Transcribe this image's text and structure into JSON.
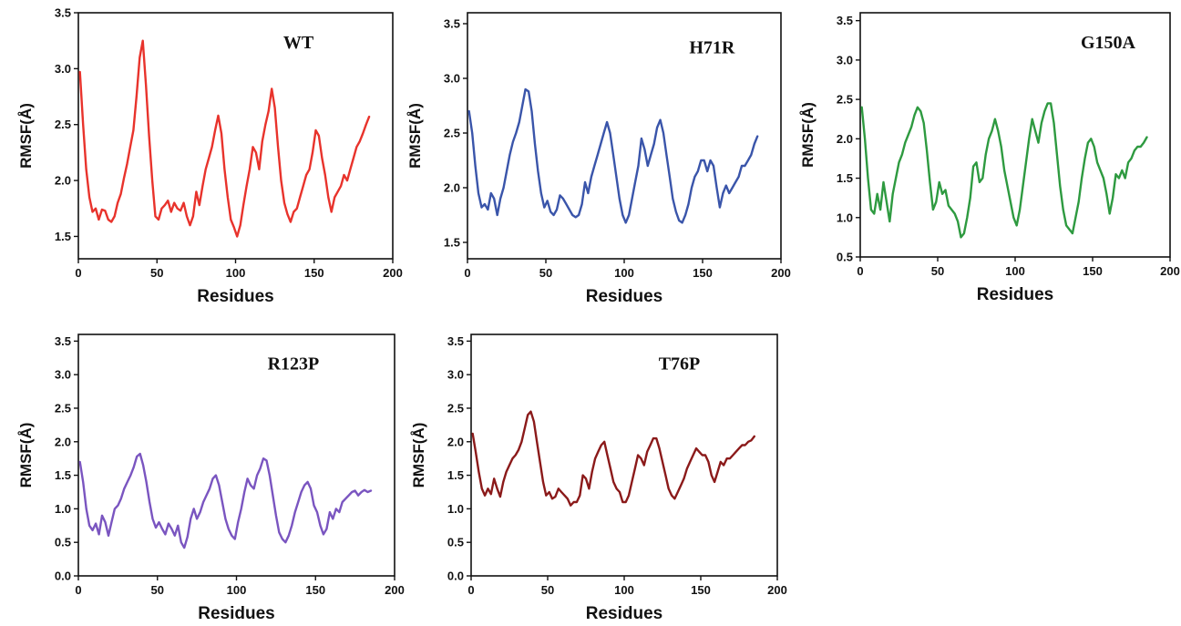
{
  "chart_data": [
    {
      "type": "line",
      "title": "WT",
      "xlabel": "Residues",
      "ylabel": "RMSF(Å)",
      "xlim": [
        0,
        200
      ],
      "ylim": [
        1.3,
        3.5
      ],
      "xticks": [
        0,
        50,
        100,
        150,
        200
      ],
      "yticks": [
        1.5,
        2.0,
        2.5,
        3.0,
        3.5
      ],
      "grid": false,
      "color": "#e8332c",
      "series": [
        {
          "x": [
            1,
            3,
            5,
            7,
            9,
            11,
            13,
            15,
            17,
            19,
            21,
            23,
            25,
            27,
            29,
            31,
            33,
            35,
            37,
            39,
            41,
            43,
            45,
            47,
            49,
            51,
            53,
            55,
            57,
            59,
            61,
            63,
            65,
            67,
            69,
            71,
            73,
            75,
            77,
            79,
            81,
            83,
            85,
            87,
            89,
            91,
            93,
            95,
            97,
            99,
            101,
            103,
            105,
            107,
            109,
            111,
            113,
            115,
            117,
            119,
            121,
            123,
            125,
            127,
            129,
            131,
            133,
            135,
            137,
            139,
            141,
            143,
            145,
            147,
            149,
            151,
            153,
            155,
            157,
            159,
            161,
            163,
            165,
            167,
            169,
            171,
            173,
            175,
            177,
            179,
            181,
            183,
            185
          ],
          "y": [
            2.97,
            2.5,
            2.1,
            1.85,
            1.72,
            1.75,
            1.65,
            1.74,
            1.73,
            1.65,
            1.63,
            1.68,
            1.8,
            1.88,
            2.02,
            2.15,
            2.3,
            2.45,
            2.75,
            3.1,
            3.25,
            2.85,
            2.4,
            2.0,
            1.68,
            1.65,
            1.75,
            1.78,
            1.82,
            1.72,
            1.8,
            1.75,
            1.73,
            1.8,
            1.68,
            1.6,
            1.68,
            1.9,
            1.78,
            1.95,
            2.1,
            2.2,
            2.3,
            2.45,
            2.58,
            2.42,
            2.1,
            1.85,
            1.65,
            1.58,
            1.5,
            1.6,
            1.78,
            1.95,
            2.1,
            2.3,
            2.25,
            2.1,
            2.35,
            2.5,
            2.62,
            2.82,
            2.65,
            2.3,
            2.0,
            1.8,
            1.7,
            1.63,
            1.72,
            1.75,
            1.85,
            1.95,
            2.05,
            2.1,
            2.25,
            2.45,
            2.4,
            2.2,
            2.05,
            1.85,
            1.72,
            1.85,
            1.9,
            1.95,
            2.05,
            2.0,
            2.1,
            2.2,
            2.3,
            2.35,
            2.42,
            2.5,
            2.57
          ]
        }
      ]
    },
    {
      "type": "line",
      "title": "H71R",
      "xlabel": "Residues",
      "ylabel": "RMSF(Å)",
      "xlim": [
        0,
        200
      ],
      "ylim": [
        1.35,
        3.6
      ],
      "xticks": [
        0,
        50,
        100,
        150,
        200
      ],
      "yticks": [
        1.5,
        2.0,
        2.5,
        3.0,
        3.5
      ],
      "grid": false,
      "color": "#3a55aa",
      "series": [
        {
          "x": [
            1,
            3,
            5,
            7,
            9,
            11,
            13,
            15,
            17,
            19,
            21,
            23,
            25,
            27,
            29,
            31,
            33,
            35,
            37,
            39,
            41,
            43,
            45,
            47,
            49,
            51,
            53,
            55,
            57,
            59,
            61,
            63,
            65,
            67,
            69,
            71,
            73,
            75,
            77,
            79,
            81,
            83,
            85,
            87,
            89,
            91,
            93,
            95,
            97,
            99,
            101,
            103,
            105,
            107,
            109,
            111,
            113,
            115,
            117,
            119,
            121,
            123,
            125,
            127,
            129,
            131,
            133,
            135,
            137,
            139,
            141,
            143,
            145,
            147,
            149,
            151,
            153,
            155,
            157,
            159,
            161,
            163,
            165,
            167,
            169,
            171,
            173,
            175,
            177,
            179,
            181,
            183,
            185
          ],
          "y": [
            2.7,
            2.5,
            2.2,
            1.95,
            1.82,
            1.85,
            1.8,
            1.95,
            1.9,
            1.75,
            1.9,
            2.0,
            2.15,
            2.3,
            2.42,
            2.5,
            2.6,
            2.75,
            2.9,
            2.88,
            2.7,
            2.4,
            2.15,
            1.95,
            1.82,
            1.88,
            1.78,
            1.75,
            1.8,
            1.93,
            1.9,
            1.85,
            1.8,
            1.75,
            1.73,
            1.75,
            1.85,
            2.05,
            1.95,
            2.1,
            2.2,
            2.3,
            2.4,
            2.5,
            2.6,
            2.5,
            2.3,
            2.1,
            1.9,
            1.75,
            1.68,
            1.75,
            1.9,
            2.05,
            2.2,
            2.45,
            2.35,
            2.2,
            2.3,
            2.4,
            2.55,
            2.62,
            2.5,
            2.3,
            2.1,
            1.9,
            1.78,
            1.7,
            1.68,
            1.75,
            1.85,
            2.0,
            2.1,
            2.15,
            2.25,
            2.25,
            2.15,
            2.25,
            2.2,
            2.0,
            1.82,
            1.95,
            2.02,
            1.95,
            2.0,
            2.05,
            2.1,
            2.2,
            2.2,
            2.25,
            2.3,
            2.4,
            2.47
          ]
        }
      ]
    },
    {
      "type": "line",
      "title": "G150A",
      "xlabel": "Residues",
      "ylabel": "RMSF(Å)",
      "xlim": [
        0,
        200
      ],
      "ylim": [
        0.5,
        3.6
      ],
      "xticks": [
        0,
        50,
        100,
        150,
        200
      ],
      "yticks": [
        0.5,
        1.0,
        1.5,
        2.0,
        2.5,
        3.0,
        3.5
      ],
      "grid": false,
      "color": "#2e9a40",
      "series": [
        {
          "x": [
            1,
            3,
            5,
            7,
            9,
            11,
            13,
            15,
            17,
            19,
            21,
            23,
            25,
            27,
            29,
            31,
            33,
            35,
            37,
            39,
            41,
            43,
            45,
            47,
            49,
            51,
            53,
            55,
            57,
            59,
            61,
            63,
            65,
            67,
            69,
            71,
            73,
            75,
            77,
            79,
            81,
            83,
            85,
            87,
            89,
            91,
            93,
            95,
            97,
            99,
            101,
            103,
            105,
            107,
            109,
            111,
            113,
            115,
            117,
            119,
            121,
            123,
            125,
            127,
            129,
            131,
            133,
            135,
            137,
            139,
            141,
            143,
            145,
            147,
            149,
            151,
            153,
            155,
            157,
            159,
            161,
            163,
            165,
            167,
            169,
            171,
            173,
            175,
            177,
            179,
            181,
            183,
            185
          ],
          "y": [
            2.4,
            2.0,
            1.5,
            1.1,
            1.05,
            1.3,
            1.1,
            1.45,
            1.2,
            0.95,
            1.3,
            1.5,
            1.7,
            1.8,
            1.95,
            2.05,
            2.15,
            2.3,
            2.4,
            2.35,
            2.2,
            1.85,
            1.45,
            1.1,
            1.2,
            1.45,
            1.3,
            1.35,
            1.15,
            1.1,
            1.05,
            0.95,
            0.75,
            0.8,
            1.0,
            1.25,
            1.65,
            1.7,
            1.45,
            1.5,
            1.8,
            2.0,
            2.1,
            2.25,
            2.1,
            1.9,
            1.6,
            1.4,
            1.2,
            1.0,
            0.9,
            1.1,
            1.4,
            1.7,
            2.0,
            2.25,
            2.1,
            1.95,
            2.2,
            2.35,
            2.45,
            2.45,
            2.2,
            1.8,
            1.4,
            1.1,
            0.9,
            0.85,
            0.8,
            1.0,
            1.2,
            1.5,
            1.75,
            1.95,
            2.0,
            1.9,
            1.7,
            1.6,
            1.5,
            1.3,
            1.05,
            1.25,
            1.55,
            1.5,
            1.6,
            1.5,
            1.7,
            1.75,
            1.85,
            1.9,
            1.9,
            1.95,
            2.02
          ]
        }
      ]
    },
    {
      "type": "line",
      "title": "R123P",
      "xlabel": "Residues",
      "ylabel": "RMSF(Å)",
      "xlim": [
        0,
        200
      ],
      "ylim": [
        0,
        3.6
      ],
      "xticks": [
        0,
        50,
        100,
        150,
        200
      ],
      "yticks": [
        0.0,
        0.5,
        1.0,
        1.5,
        2.0,
        2.5,
        3.0,
        3.5
      ],
      "grid": false,
      "color": "#7a55c0",
      "series": [
        {
          "x": [
            1,
            3,
            5,
            7,
            9,
            11,
            13,
            15,
            17,
            19,
            21,
            23,
            25,
            27,
            29,
            31,
            33,
            35,
            37,
            39,
            41,
            43,
            45,
            47,
            49,
            51,
            53,
            55,
            57,
            59,
            61,
            63,
            65,
            67,
            69,
            71,
            73,
            75,
            77,
            79,
            81,
            83,
            85,
            87,
            89,
            91,
            93,
            95,
            97,
            99,
            101,
            103,
            105,
            107,
            109,
            111,
            113,
            115,
            117,
            119,
            121,
            123,
            125,
            127,
            129,
            131,
            133,
            135,
            137,
            139,
            141,
            143,
            145,
            147,
            149,
            151,
            153,
            155,
            157,
            159,
            161,
            163,
            165,
            167,
            169,
            171,
            173,
            175,
            177,
            179,
            181,
            183,
            185
          ],
          "y": [
            1.7,
            1.4,
            1.0,
            0.75,
            0.68,
            0.78,
            0.62,
            0.9,
            0.8,
            0.6,
            0.8,
            1.0,
            1.05,
            1.15,
            1.3,
            1.4,
            1.5,
            1.62,
            1.78,
            1.82,
            1.65,
            1.4,
            1.1,
            0.85,
            0.72,
            0.8,
            0.7,
            0.62,
            0.78,
            0.7,
            0.6,
            0.75,
            0.5,
            0.42,
            0.58,
            0.85,
            1.0,
            0.85,
            0.95,
            1.1,
            1.2,
            1.3,
            1.45,
            1.5,
            1.35,
            1.1,
            0.85,
            0.7,
            0.6,
            0.55,
            0.8,
            1.0,
            1.25,
            1.45,
            1.35,
            1.3,
            1.5,
            1.6,
            1.75,
            1.72,
            1.5,
            1.2,
            0.9,
            0.65,
            0.55,
            0.5,
            0.6,
            0.75,
            0.95,
            1.1,
            1.25,
            1.35,
            1.4,
            1.3,
            1.05,
            0.95,
            0.75,
            0.62,
            0.7,
            0.95,
            0.85,
            1.0,
            0.95,
            1.1,
            1.15,
            1.2,
            1.25,
            1.27,
            1.2,
            1.25,
            1.28,
            1.25,
            1.27
          ]
        }
      ]
    },
    {
      "type": "line",
      "title": "T76P",
      "xlabel": "Residues",
      "ylabel": "RMSF(Å)",
      "xlim": [
        0,
        200
      ],
      "ylim": [
        0,
        3.6
      ],
      "xticks": [
        0,
        50,
        100,
        150,
        200
      ],
      "yticks": [
        0.0,
        0.5,
        1.0,
        1.5,
        2.0,
        2.5,
        3.0,
        3.5
      ],
      "grid": false,
      "color": "#8b1a1a",
      "series": [
        {
          "x": [
            1,
            3,
            5,
            7,
            9,
            11,
            13,
            15,
            17,
            19,
            21,
            23,
            25,
            27,
            29,
            31,
            33,
            35,
            37,
            39,
            41,
            43,
            45,
            47,
            49,
            51,
            53,
            55,
            57,
            59,
            61,
            63,
            65,
            67,
            69,
            71,
            73,
            75,
            77,
            79,
            81,
            83,
            85,
            87,
            89,
            91,
            93,
            95,
            97,
            99,
            101,
            103,
            105,
            107,
            109,
            111,
            113,
            115,
            117,
            119,
            121,
            123,
            125,
            127,
            129,
            131,
            133,
            135,
            137,
            139,
            141,
            143,
            145,
            147,
            149,
            151,
            153,
            155,
            157,
            159,
            161,
            163,
            165,
            167,
            169,
            171,
            173,
            175,
            177,
            179,
            181,
            183,
            185
          ],
          "y": [
            2.12,
            1.85,
            1.55,
            1.3,
            1.2,
            1.3,
            1.22,
            1.45,
            1.3,
            1.18,
            1.4,
            1.55,
            1.65,
            1.75,
            1.8,
            1.88,
            2.0,
            2.2,
            2.4,
            2.45,
            2.3,
            2.0,
            1.7,
            1.4,
            1.2,
            1.25,
            1.15,
            1.18,
            1.3,
            1.25,
            1.2,
            1.15,
            1.05,
            1.1,
            1.1,
            1.2,
            1.5,
            1.45,
            1.3,
            1.55,
            1.75,
            1.85,
            1.95,
            2.0,
            1.8,
            1.6,
            1.4,
            1.3,
            1.25,
            1.1,
            1.1,
            1.2,
            1.4,
            1.6,
            1.8,
            1.75,
            1.65,
            1.85,
            1.95,
            2.05,
            2.05,
            1.9,
            1.7,
            1.5,
            1.3,
            1.2,
            1.15,
            1.25,
            1.35,
            1.45,
            1.6,
            1.7,
            1.8,
            1.9,
            1.85,
            1.8,
            1.8,
            1.7,
            1.5,
            1.4,
            1.55,
            1.7,
            1.65,
            1.75,
            1.75,
            1.8,
            1.85,
            1.9,
            1.95,
            1.95,
            2.0,
            2.02,
            2.08
          ]
        }
      ]
    }
  ]
}
